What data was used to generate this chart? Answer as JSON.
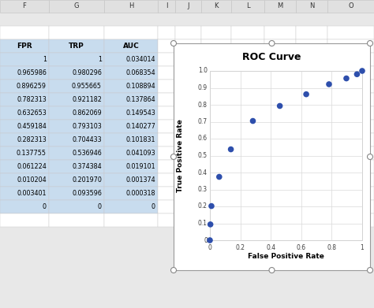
{
  "fpr": [
    1,
    0.965986,
    0.896259,
    0.782313,
    0.632653,
    0.459184,
    0.282313,
    0.137755,
    0.061224,
    0.010204,
    0.003401,
    0
  ],
  "tpr": [
    1,
    0.980296,
    0.955665,
    0.921182,
    0.862069,
    0.793103,
    0.704433,
    0.536946,
    0.374384,
    0.20197,
    0.093596,
    0
  ],
  "auc": [
    0.034014,
    0.068354,
    0.108894,
    0.137864,
    0.149543,
    0.140277,
    0.101831,
    0.041093,
    0.019101,
    0.001374,
    0.000318,
    0
  ],
  "fpr_plot": [
    0,
    0.003401,
    0.010204,
    0.061224,
    0.137755,
    0.282313,
    0.459184,
    0.632653,
    0.782313,
    0.896259,
    0.965986,
    1
  ],
  "tpr_plot": [
    0,
    0.093596,
    0.20197,
    0.374384,
    0.536946,
    0.704433,
    0.793103,
    0.862069,
    0.921182,
    0.955665,
    0.980296,
    1
  ],
  "col_headers": [
    "F",
    "G",
    "H",
    "I",
    "J",
    "K",
    "L",
    "M",
    "N",
    "O"
  ],
  "col_labels": [
    "FPR",
    "TRP",
    "AUC"
  ],
  "title": "ROC Curve",
  "xlabel": "False Positive Rate",
  "ylabel": "True Positive Rate",
  "dot_color": "#2E4FAC",
  "bg_color": "#FFFFFF",
  "grid_color": "#D9D9D9",
  "spreadsheet_bg": "#E8E8E8",
  "cell_border_color": "#C8C8C8",
  "header_bg": "#E0E0E0",
  "selected_bg": "#C8DCEE",
  "xlim": [
    0,
    1
  ],
  "ylim": [
    0,
    1
  ],
  "xticks": [
    0,
    0.2,
    0.4,
    0.6,
    0.8,
    1.0
  ],
  "yticks": [
    0,
    0.1,
    0.2,
    0.3,
    0.4,
    0.5,
    0.6,
    0.7,
    0.8,
    0.9,
    1.0
  ]
}
